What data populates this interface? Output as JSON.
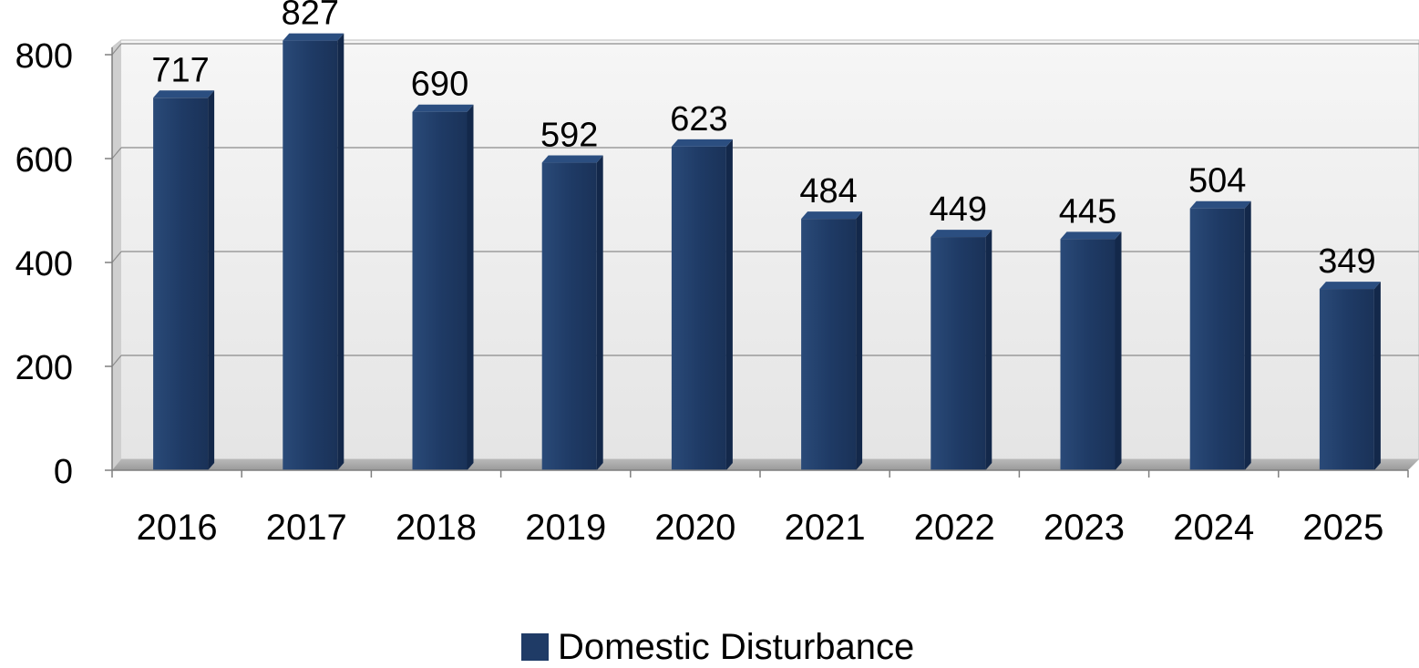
{
  "chart_data": {
    "type": "bar",
    "categories": [
      "2016",
      "2017",
      "2018",
      "2019",
      "2020",
      "2021",
      "2022",
      "2023",
      "2024",
      "2025"
    ],
    "series": [
      {
        "name": "Domestic Disturbance",
        "values": [
          717,
          827,
          690,
          592,
          623,
          484,
          449,
          445,
          504,
          349
        ]
      }
    ],
    "ylim": [
      0,
      800
    ],
    "yticks": [
      "0",
      "200",
      "400",
      "600",
      "800"
    ],
    "grid": true,
    "legend_position": "bottom",
    "style": "3d-column",
    "bar_color": "#1F3B66",
    "bar_side_color": "#13284A",
    "bar_top_color": "#2B4E80"
  }
}
